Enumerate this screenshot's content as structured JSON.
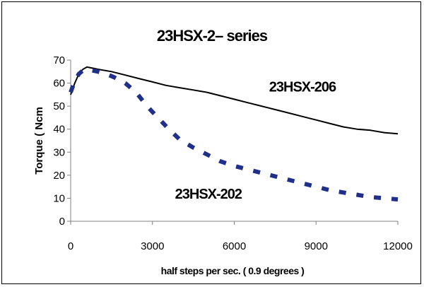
{
  "chart_data": {
    "type": "line",
    "title": "23HSX-2– series",
    "xlabel": "half steps per sec. ( 0.9 degrees )",
    "ylabel": "Torque ( Ncm",
    "xlim": [
      0,
      12000
    ],
    "ylim": [
      0,
      70
    ],
    "x_ticks": [
      0,
      3000,
      6000,
      9000,
      12000
    ],
    "x_tick_labels": [
      "0",
      "3000",
      "6000",
      "9000",
      "12000"
    ],
    "y_ticks": [
      0,
      10,
      20,
      30,
      40,
      50,
      60,
      70
    ],
    "y_tick_labels": [
      "0",
      "10",
      "20",
      "30",
      "40",
      "50",
      "60",
      "70"
    ],
    "grid": false,
    "legend": "none",
    "series": [
      {
        "name": "23HSX-206",
        "style": "solid",
        "color": "#000000",
        "x": [
          0,
          150,
          300,
          450,
          600,
          800,
          1000,
          1500,
          2000,
          2500,
          3000,
          3500,
          4000,
          4500,
          5000,
          5500,
          6000,
          6500,
          7000,
          7500,
          8000,
          8500,
          9000,
          9500,
          10000,
          10500,
          11000,
          11500,
          12000
        ],
        "y": [
          55,
          60,
          64,
          66,
          67,
          66.5,
          66,
          65,
          63.5,
          62,
          60.5,
          59,
          58,
          57,
          56,
          54.5,
          53,
          51.5,
          50,
          48.5,
          47,
          45.5,
          44,
          42.5,
          41,
          40,
          39.5,
          38.5,
          38
        ]
      },
      {
        "name": "23HSX-202",
        "style": "dashed",
        "color": "#1f2f8a",
        "x": [
          0,
          150,
          300,
          450,
          600,
          800,
          1000,
          1300,
          1600,
          2000,
          2400,
          2800,
          3200,
          3600,
          4000,
          4500,
          5000,
          5500,
          6000,
          6500,
          7000,
          7500,
          8000,
          8500,
          9000,
          9500,
          10000,
          10500,
          11000,
          11500,
          12000
        ],
        "y": [
          56,
          61,
          64,
          65.5,
          66,
          65.5,
          65,
          64,
          62.5,
          60,
          56,
          50,
          45,
          40,
          35.5,
          32,
          29,
          26,
          24,
          22.5,
          21,
          19.5,
          18,
          16.5,
          15,
          13.5,
          12.5,
          11.5,
          10.5,
          10,
          9.5
        ]
      }
    ],
    "annotations": [
      {
        "text": "23HSX-206",
        "x": 8500,
        "y": 58.5
      },
      {
        "text": "23HSX-202",
        "x": 5050,
        "y": 12
      }
    ]
  }
}
